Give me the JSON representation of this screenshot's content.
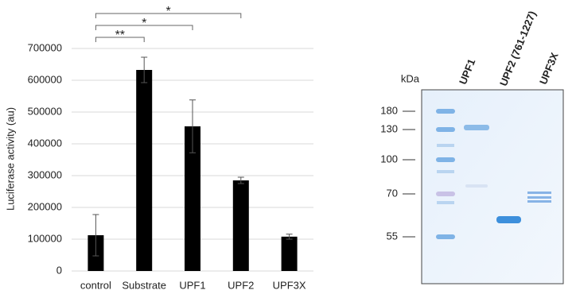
{
  "chart_data": {
    "type": "bar",
    "y_label": "Luciferase activity (au)",
    "categories": [
      "control",
      "Substrate",
      "UPF1",
      "UPF2",
      "UPF3X"
    ],
    "values": [
      112500,
      632500,
      455000,
      285000,
      108000
    ],
    "errors": [
      65000,
      40000,
      83000,
      10000,
      8000
    ],
    "color": "#000000",
    "ylim": [
      0,
      700000
    ],
    "yticks": [
      0,
      100000,
      200000,
      300000,
      400000,
      500000,
      600000,
      700000
    ],
    "grid": true,
    "significance": [
      {
        "from": "control",
        "to": "Substrate",
        "label": "**"
      },
      {
        "from": "control",
        "to": "UPF1",
        "label": "*"
      },
      {
        "from": "control",
        "to": "UPF2",
        "label": "*"
      }
    ]
  },
  "gel": {
    "unit": "kDa",
    "markers": [
      "180",
      "130",
      "100",
      "70",
      "55"
    ],
    "lanes": [
      "UPF1",
      "UPF2 (761-1227)",
      "UPF3X"
    ]
  }
}
